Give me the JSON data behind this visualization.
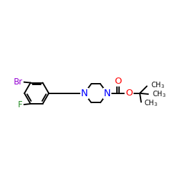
{
  "background_color": "#ffffff",
  "atom_colors": {
    "N": "#0000ff",
    "O": "#ff0000",
    "Br": "#9400d3",
    "F": "#228b22",
    "C": "#000000"
  },
  "bond_color": "#000000",
  "bond_width": 1.4,
  "font_size": 8.5
}
